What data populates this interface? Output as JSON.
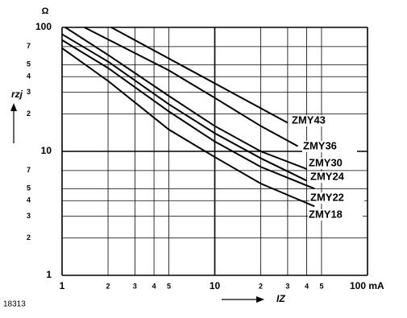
{
  "chart_data": {
    "type": "line",
    "code": "18313",
    "y_unit": "Ω",
    "xlabel": "IZ",
    "ylabel": "rzj",
    "log_x": true,
    "log_y": true,
    "grid": true,
    "color": "#000000",
    "xlim": [
      1,
      100
    ],
    "ylim": [
      1,
      100
    ],
    "xticks": [
      1,
      2,
      3,
      4,
      5,
      10,
      {
        "value": 20,
        "label": "2"
      },
      {
        "value": 30,
        "label": "3"
      },
      {
        "value": 40,
        "label": "4"
      },
      {
        "value": 50,
        "label": "5"
      },
      {
        "value": 100,
        "label": "100 mA"
      }
    ],
    "yticks": [
      1,
      2,
      3,
      4,
      5,
      7,
      10,
      {
        "value": 20,
        "label": "2"
      },
      {
        "value": 30,
        "label": "3"
      },
      {
        "value": 40,
        "label": "4"
      },
      {
        "value": 50,
        "label": "5"
      },
      {
        "value": 70,
        "label": "7"
      },
      100
    ],
    "series": [
      {
        "name": "ZMY43",
        "x": [
          2.1,
          30
        ],
        "values": [
          100,
          17
        ]
      },
      {
        "name": "ZMY36",
        "x": [
          1.4,
          5,
          10,
          20,
          35
        ],
        "values": [
          100,
          45,
          27,
          16,
          11
        ]
      },
      {
        "name": "ZMY30",
        "x": [
          1.05,
          2,
          5,
          10,
          20,
          40
        ],
        "values": [
          100,
          60,
          28,
          16,
          10,
          7.2
        ]
      },
      {
        "name": "ZMY24",
        "x": [
          1,
          2,
          5,
          10,
          20,
          40
        ],
        "values": [
          88,
          53,
          24,
          14,
          8.8,
          5.8
        ]
      },
      {
        "name": "ZMY22",
        "x": [
          1,
          2,
          5,
          10,
          20,
          45
        ],
        "values": [
          79,
          47,
          21,
          12,
          7.5,
          5
        ]
      },
      {
        "name": "ZMY18",
        "x": [
          1,
          2,
          5,
          10,
          20,
          45
        ],
        "values": [
          68,
          37,
          15,
          9,
          5.5,
          3.6
        ]
      }
    ]
  }
}
